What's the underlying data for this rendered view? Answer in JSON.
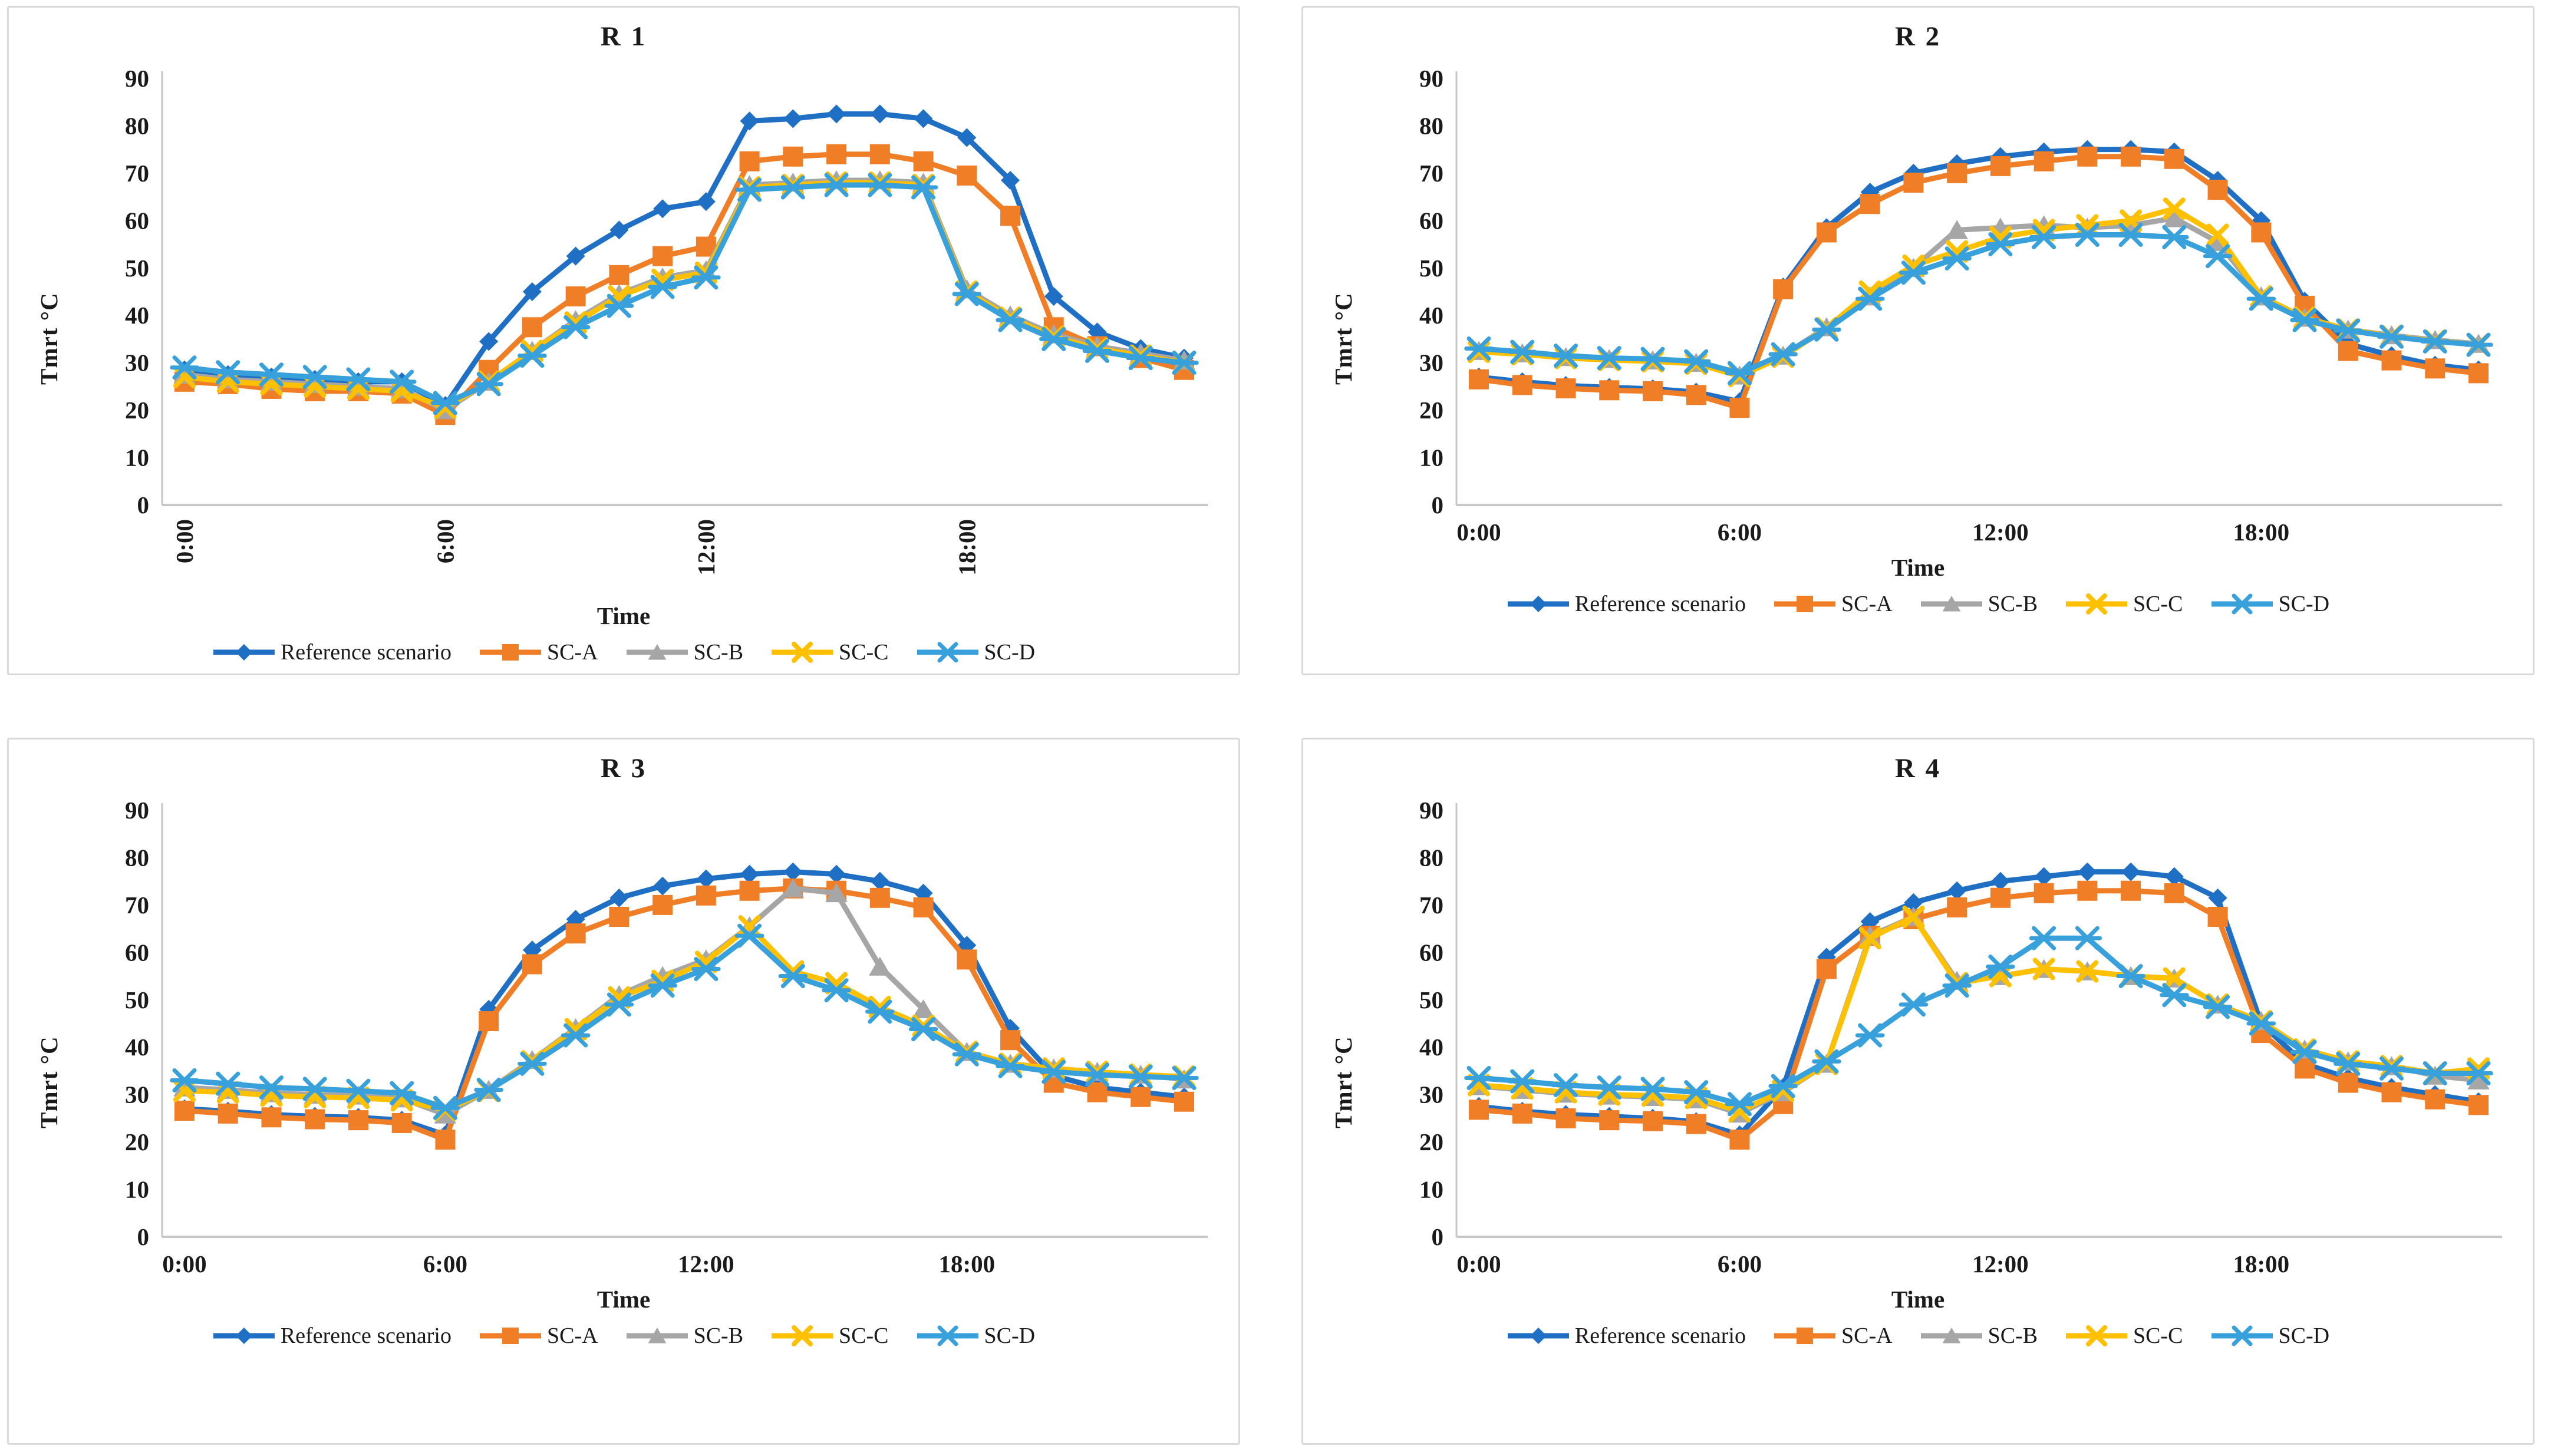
{
  "figure": {
    "background": "#ffffff",
    "panel_border_color": "#d9d9d9",
    "axis_line_color": "#c6c6c6",
    "text_color": "#1a1a1a"
  },
  "chart_data": [
    {
      "id": "R1",
      "type": "line",
      "title": "R 1",
      "xlabel": "Time",
      "ylabel": "Tmrt °C",
      "ylim": [
        0,
        90
      ],
      "y_ticks": [
        0,
        10,
        20,
        30,
        40,
        50,
        60,
        70,
        80,
        90
      ],
      "grid": false,
      "legend_position": "bottom",
      "x_tick_labels": [
        "0:00",
        "6:00",
        "12:00",
        "18:00"
      ],
      "x_tick_indices": [
        0,
        6,
        12,
        18
      ],
      "x_tick_rotated": true,
      "categories": [
        "0:00",
        "1:00",
        "2:00",
        "3:00",
        "4:00",
        "5:00",
        "6:00",
        "7:00",
        "8:00",
        "9:00",
        "10:00",
        "11:00",
        "12:00",
        "13:00",
        "14:00",
        "15:00",
        "16:00",
        "17:00",
        "18:00",
        "19:00",
        "20:00",
        "21:00",
        "22:00",
        "23:00"
      ],
      "series": [
        {
          "name": "Reference scenario",
          "color": "#1F6FC5",
          "marker": "diamond",
          "values": [
            28.5,
            27.5,
            27,
            26.5,
            26,
            26,
            21,
            34.5,
            45,
            52.5,
            58,
            62.5,
            64,
            81,
            81.5,
            82.5,
            82.5,
            81.5,
            77.5,
            68.5,
            44,
            36.5,
            33,
            31
          ]
        },
        {
          "name": "SC-A",
          "color": "#F07E27",
          "marker": "square",
          "values": [
            26,
            25.5,
            24.5,
            24,
            24,
            23.5,
            19,
            28.5,
            37.5,
            44,
            48.5,
            52.5,
            54.5,
            72.5,
            73.5,
            74,
            74,
            72.5,
            69.5,
            61,
            37.5,
            33.5,
            31,
            28.5
          ]
        },
        {
          "name": "SC-B",
          "color": "#A6A6A6",
          "marker": "triangle",
          "values": [
            27.5,
            26.5,
            26,
            25.5,
            25,
            24.5,
            20,
            26,
            32.5,
            39,
            44.5,
            48,
            49.5,
            67.5,
            68,
            68.5,
            68.5,
            68,
            45.5,
            40,
            36,
            33.5,
            32,
            30.5
          ]
        },
        {
          "name": "SC-C",
          "color": "#FFC000",
          "marker": "x",
          "values": [
            27,
            26,
            25.5,
            25,
            24.5,
            24,
            20.5,
            26,
            32.5,
            38.5,
            44,
            47.5,
            49,
            67,
            67.5,
            68,
            68,
            67.5,
            45,
            39.5,
            35.5,
            33,
            31.5,
            30
          ]
        },
        {
          "name": "SC-D",
          "color": "#38A0DB",
          "marker": "star",
          "values": [
            29,
            28,
            27.5,
            27,
            26.5,
            26,
            21.5,
            25.5,
            31.5,
            37.5,
            42,
            46,
            48,
            66.5,
            67,
            67.5,
            67.5,
            67,
            44.5,
            39,
            35,
            32.5,
            31,
            30
          ]
        }
      ]
    },
    {
      "id": "R2",
      "type": "line",
      "title": "R 2",
      "xlabel": "Time",
      "ylabel": "Tmrt °C",
      "ylim": [
        0,
        90
      ],
      "y_ticks": [
        0,
        10,
        20,
        30,
        40,
        50,
        60,
        70,
        80,
        90
      ],
      "grid": false,
      "legend_position": "bottom",
      "x_tick_labels": [
        "0:00",
        "6:00",
        "12:00",
        "18:00"
      ],
      "x_tick_indices": [
        0,
        6,
        12,
        18
      ],
      "x_tick_rotated": false,
      "categories": [
        "0:00",
        "1:00",
        "2:00",
        "3:00",
        "4:00",
        "5:00",
        "6:00",
        "7:00",
        "8:00",
        "9:00",
        "10:00",
        "11:00",
        "12:00",
        "13:00",
        "14:00",
        "15:00",
        "16:00",
        "17:00",
        "18:00",
        "19:00",
        "20:00",
        "21:00",
        "22:00",
        "23:00"
      ],
      "series": [
        {
          "name": "Reference scenario",
          "color": "#1F6FC5",
          "marker": "diamond",
          "values": [
            27,
            26,
            25.2,
            24.8,
            24.5,
            23.8,
            21.8,
            46,
            58.5,
            66,
            70,
            72,
            73.5,
            74.5,
            75,
            75,
            74.5,
            68.5,
            60,
            43,
            34,
            31.5,
            29.5,
            28.5
          ]
        },
        {
          "name": "SC-A",
          "color": "#F07E27",
          "marker": "square",
          "values": [
            26.5,
            25.3,
            24.6,
            24.2,
            24,
            23.2,
            20.5,
            45.5,
            57.5,
            63.5,
            68,
            70,
            71.5,
            72.5,
            73.5,
            73.5,
            73,
            66.5,
            57.5,
            42,
            32.5,
            30.5,
            28.8,
            27.8
          ]
        },
        {
          "name": "SC-B",
          "color": "#A6A6A6",
          "marker": "triangle",
          "values": [
            32.5,
            32,
            31.2,
            30.8,
            30.5,
            30,
            27.3,
            31.5,
            37.5,
            44,
            50,
            58,
            58.5,
            59,
            58.5,
            59,
            60.5,
            55.5,
            44,
            39.5,
            37,
            35.8,
            34.8,
            34
          ]
        },
        {
          "name": "SC-C",
          "color": "#FFC000",
          "marker": "x",
          "values": [
            32.3,
            31.8,
            31,
            30.6,
            30.3,
            29.8,
            27.2,
            31.3,
            37.3,
            45,
            50.5,
            53.5,
            56.5,
            58,
            59,
            60,
            62.5,
            57,
            44,
            39.5,
            37,
            35.6,
            34.6,
            33.8
          ]
        },
        {
          "name": "SC-D",
          "color": "#38A0DB",
          "marker": "star",
          "values": [
            33,
            32.3,
            31.5,
            31,
            30.8,
            30.3,
            27.8,
            31.8,
            37,
            43.5,
            49,
            52,
            55,
            56.5,
            57,
            57,
            56.5,
            52.5,
            43.5,
            39,
            36.8,
            35.5,
            34.5,
            33.8
          ]
        }
      ]
    },
    {
      "id": "R3",
      "type": "line",
      "title": "R 3",
      "xlabel": "Time",
      "ylabel": "Tmrt °C",
      "ylim": [
        0,
        90
      ],
      "y_ticks": [
        0,
        10,
        20,
        30,
        40,
        50,
        60,
        70,
        80,
        90
      ],
      "grid": false,
      "legend_position": "bottom",
      "x_tick_labels": [
        "0:00",
        "6:00",
        "12:00",
        "18:00"
      ],
      "x_tick_indices": [
        0,
        6,
        12,
        18
      ],
      "x_tick_rotated": false,
      "categories": [
        "0:00",
        "1:00",
        "2:00",
        "3:00",
        "4:00",
        "5:00",
        "6:00",
        "7:00",
        "8:00",
        "9:00",
        "10:00",
        "11:00",
        "12:00",
        "13:00",
        "14:00",
        "15:00",
        "16:00",
        "17:00",
        "18:00",
        "19:00",
        "20:00",
        "21:00",
        "22:00",
        "23:00"
      ],
      "series": [
        {
          "name": "Reference scenario",
          "color": "#1F6FC5",
          "marker": "diamond",
          "values": [
            27,
            26.5,
            25.8,
            25.4,
            25.2,
            24.6,
            21.5,
            48,
            60.5,
            67,
            71.5,
            74,
            75.5,
            76.5,
            77,
            76.5,
            75,
            72.5,
            61.5,
            44,
            34,
            31.5,
            30.5,
            29.5
          ]
        },
        {
          "name": "SC-A",
          "color": "#F07E27",
          "marker": "square",
          "values": [
            26.6,
            26,
            25.2,
            24.8,
            24.6,
            24,
            20.5,
            45.5,
            57.5,
            64,
            67.5,
            70,
            72,
            73,
            73.5,
            73,
            71.5,
            69.5,
            58.5,
            41.5,
            32.5,
            30.5,
            29.5,
            28.5
          ]
        },
        {
          "name": "SC-B",
          "color": "#A6A6A6",
          "marker": "triangle",
          "values": [
            31.5,
            31,
            30.3,
            30,
            29.8,
            29.2,
            25.8,
            31,
            37.3,
            44,
            51,
            55,
            58.5,
            65.5,
            73.5,
            72.5,
            57,
            48,
            39,
            36.5,
            35.5,
            34.8,
            34.2,
            33.2
          ]
        },
        {
          "name": "SC-C",
          "color": "#FFC000",
          "marker": "x",
          "values": [
            30.8,
            30.5,
            29.8,
            29.5,
            29.3,
            28.8,
            26.8,
            30.8,
            37,
            43.8,
            50.5,
            54,
            58,
            65.5,
            56,
            53.5,
            48.5,
            44.5,
            39,
            36.5,
            35.5,
            34.8,
            34.2,
            33.8
          ]
        },
        {
          "name": "SC-D",
          "color": "#38A0DB",
          "marker": "star",
          "values": [
            33,
            32.3,
            31.5,
            31.2,
            30.8,
            30.3,
            27.2,
            31,
            36.5,
            42.5,
            49,
            53,
            56.5,
            63.5,
            55,
            52,
            47.5,
            43.8,
            38.5,
            36,
            34.8,
            34.2,
            33.8,
            33.5
          ]
        }
      ]
    },
    {
      "id": "R4",
      "type": "line",
      "title": "R 4",
      "xlabel": "Time",
      "ylabel": "Tmrt °C",
      "ylim": [
        0,
        90
      ],
      "y_ticks": [
        0,
        10,
        20,
        30,
        40,
        50,
        60,
        70,
        80,
        90
      ],
      "grid": false,
      "legend_position": "bottom",
      "x_tick_labels": [
        "0:00",
        "6:00",
        "12:00",
        "18:00"
      ],
      "x_tick_indices": [
        0,
        6,
        12,
        18
      ],
      "x_tick_rotated": false,
      "categories": [
        "0:00",
        "1:00",
        "2:00",
        "3:00",
        "4:00",
        "5:00",
        "6:00",
        "7:00",
        "8:00",
        "9:00",
        "10:00",
        "11:00",
        "12:00",
        "13:00",
        "14:00",
        "15:00",
        "16:00",
        "17:00",
        "18:00",
        "19:00",
        "20:00",
        "21:00",
        "22:00",
        "23:00"
      ],
      "series": [
        {
          "name": "Reference scenario",
          "color": "#1F6FC5",
          "marker": "diamond",
          "values": [
            27.5,
            26.5,
            25.8,
            25.4,
            25,
            24.3,
            21.5,
            31.5,
            59,
            66.5,
            70.5,
            73,
            75,
            76,
            77,
            77,
            76,
            71.5,
            45,
            36.5,
            33.5,
            31.5,
            30,
            28.5
          ]
        },
        {
          "name": "SC-A",
          "color": "#F07E27",
          "marker": "square",
          "values": [
            26.8,
            26,
            25,
            24.6,
            24.4,
            23.8,
            20.5,
            28,
            56.5,
            63.5,
            67,
            69.5,
            71.5,
            72.5,
            73,
            73,
            72.5,
            67.5,
            43,
            35.5,
            32.5,
            30.5,
            29,
            27.8
          ]
        },
        {
          "name": "SC-B",
          "color": "#A6A6A6",
          "marker": "triangle",
          "values": [
            31.8,
            31,
            30.2,
            29.8,
            29.5,
            29,
            26,
            30.5,
            36.5,
            63.5,
            67.5,
            54,
            55,
            56.5,
            56,
            55,
            54.5,
            49,
            45.5,
            39.5,
            37,
            36,
            34,
            33
          ]
        },
        {
          "name": "SC-C",
          "color": "#FFC000",
          "marker": "x",
          "values": [
            32,
            31.3,
            30.5,
            30,
            29.8,
            29.3,
            26.5,
            30.8,
            36.5,
            63,
            67.5,
            53.5,
            55,
            56.5,
            56,
            55,
            54.5,
            49,
            45.5,
            39.5,
            37,
            36,
            34.5,
            35.5
          ]
        },
        {
          "name": "SC-D",
          "color": "#38A0DB",
          "marker": "star",
          "values": [
            33.5,
            32.8,
            32,
            31.5,
            31.2,
            30.5,
            28,
            31.8,
            37,
            42.5,
            49,
            53,
            57,
            63,
            63,
            55,
            51,
            48.5,
            45,
            39,
            36.5,
            35.5,
            34.5,
            34.5
          ]
        }
      ]
    }
  ]
}
